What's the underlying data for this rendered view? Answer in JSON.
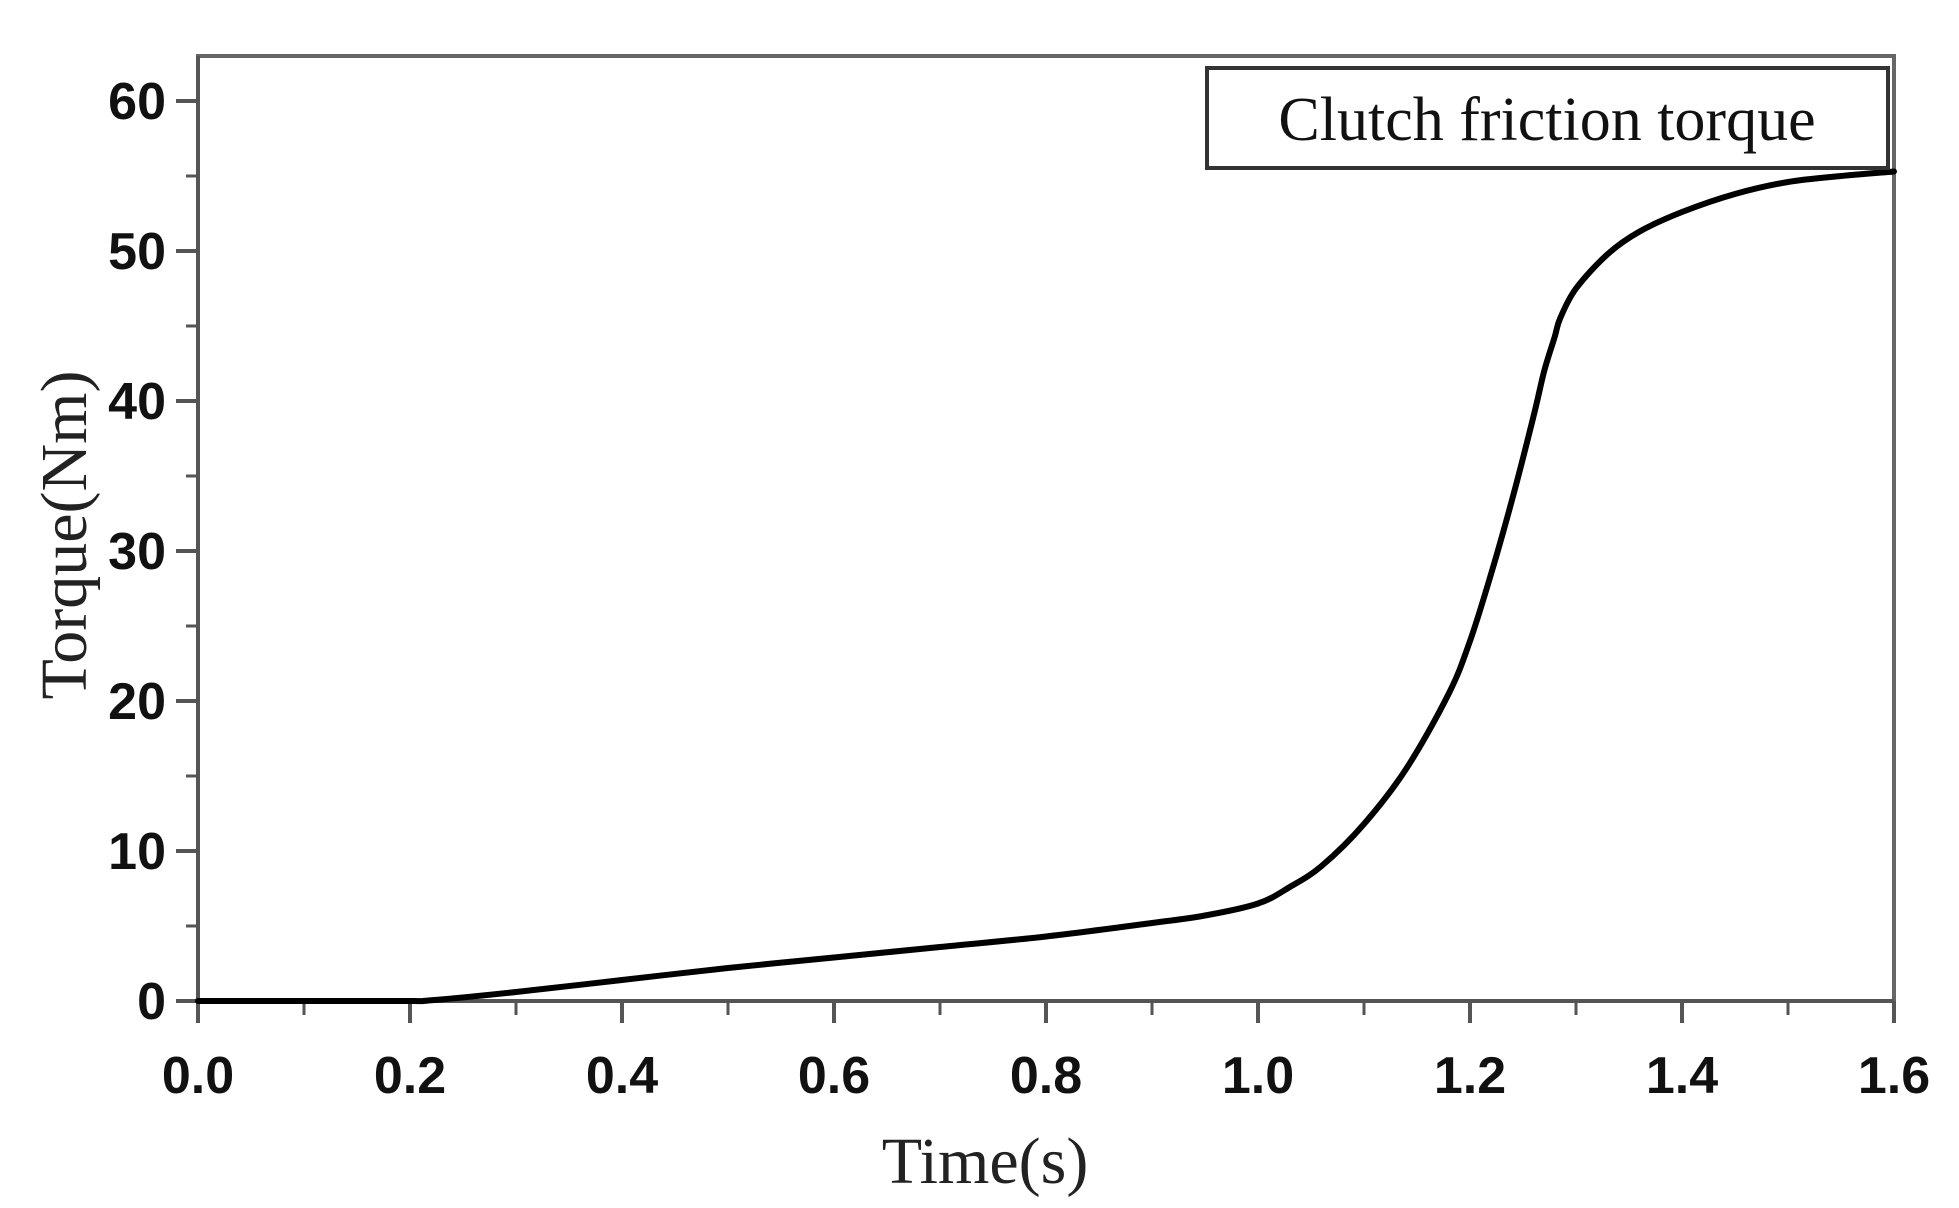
{
  "chart_data": {
    "type": "line",
    "title": "",
    "xlabel": "Time(s)",
    "ylabel": "Torque(Nm)",
    "xlim": [
      0.0,
      1.6
    ],
    "ylim": [
      0,
      63
    ],
    "x_ticks": [
      "0.0",
      "0.2",
      "0.4",
      "0.6",
      "0.8",
      "1.0",
      "1.2",
      "1.4",
      "1.6"
    ],
    "y_ticks": [
      "0",
      "10",
      "20",
      "30",
      "40",
      "50",
      "60"
    ],
    "grid": false,
    "legend": {
      "position": "top-right",
      "entries": [
        "Clutch friction torque"
      ]
    },
    "series": [
      {
        "name": "Clutch friction torque",
        "color": "#000000",
        "x": [
          0.0,
          0.1,
          0.2,
          0.22,
          0.3,
          0.4,
          0.5,
          0.6,
          0.7,
          0.8,
          0.9,
          0.95,
          1.0,
          1.03,
          1.06,
          1.1,
          1.14,
          1.18,
          1.2,
          1.22,
          1.24,
          1.26,
          1.27,
          1.28,
          1.285,
          1.3,
          1.33,
          1.36,
          1.4,
          1.45,
          1.5,
          1.55,
          1.6
        ],
        "y": [
          0.0,
          0.0,
          0.0,
          0.05,
          0.6,
          1.4,
          2.2,
          2.9,
          3.6,
          4.3,
          5.2,
          5.7,
          6.5,
          7.6,
          9.0,
          11.8,
          15.5,
          20.5,
          24.0,
          28.5,
          33.5,
          39.0,
          42.0,
          44.3,
          45.5,
          47.5,
          49.8,
          51.3,
          52.6,
          53.8,
          54.6,
          55.0,
          55.3
        ]
      }
    ]
  }
}
